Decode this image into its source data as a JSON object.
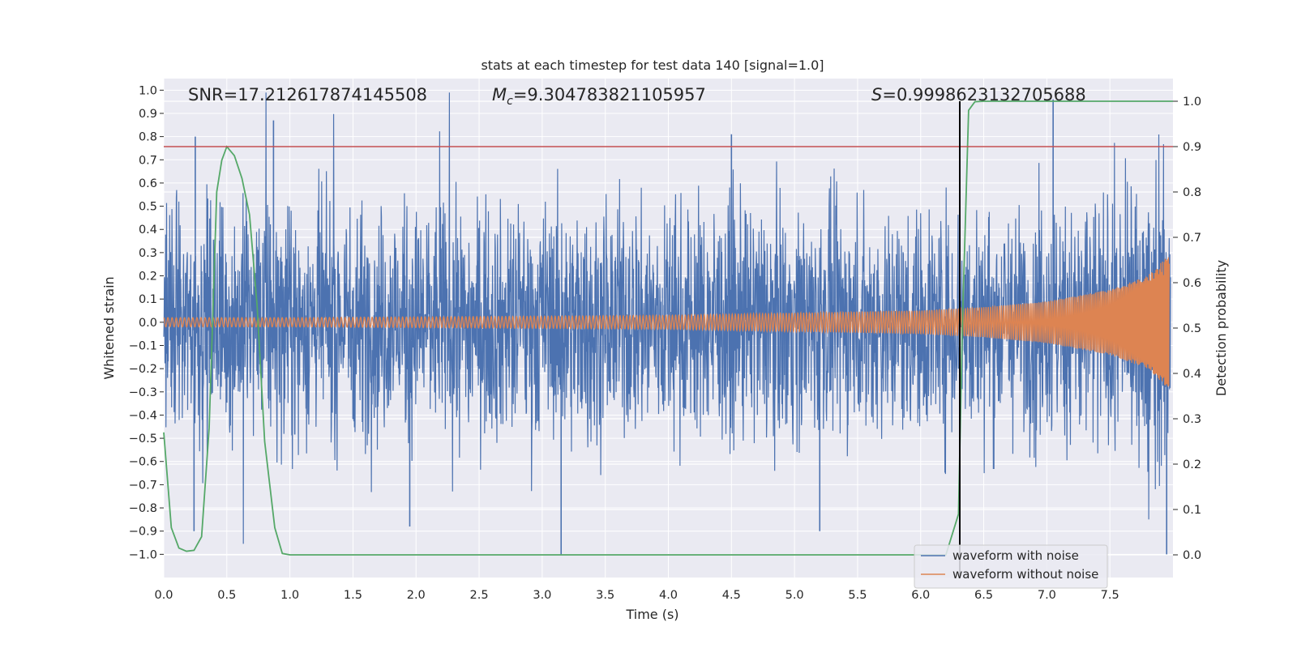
{
  "chart_data": {
    "type": "line",
    "title": "stats at each timestep for test data 140 [signal=1.0]",
    "xlabel": "Time (s)",
    "ylabel": "Whitened strain",
    "y2label": "Detection probability",
    "xlim": [
      0.0,
      8.0
    ],
    "ylim": [
      -1.1,
      1.05
    ],
    "y2lim": [
      -0.05,
      1.05
    ],
    "xticks": [
      "0.0",
      "0.5",
      "1.0",
      "1.5",
      "2.0",
      "2.5",
      "3.0",
      "3.5",
      "4.0",
      "4.5",
      "5.0",
      "5.5",
      "6.0",
      "6.5",
      "7.0",
      "7.5"
    ],
    "yticks": [
      "1.0",
      "0.9",
      "0.8",
      "0.7",
      "0.6",
      "0.5",
      "0.4",
      "0.3",
      "0.2",
      "0.1",
      "0.0",
      "−0.1",
      "−0.2",
      "−0.3",
      "−0.4",
      "−0.5",
      "−0.6",
      "−0.7",
      "−0.8",
      "−0.9",
      "−1.0"
    ],
    "y2ticks": [
      "1.0",
      "0.9",
      "0.8",
      "0.7",
      "0.6",
      "0.5",
      "0.4",
      "0.3",
      "0.2",
      "0.1",
      "0.0"
    ],
    "annotations": {
      "snr": "SNR=17.212617874145508",
      "mc_symbol": "M",
      "mc_sub": "c",
      "mc_value": "=9.304783821105957",
      "s_symbol": "S",
      "s_value": "=0.9998623132705688"
    },
    "threshold": {
      "axis": "y2",
      "value": 0.9,
      "color": "#c44e52"
    },
    "detection_time": {
      "value": 6.31,
      "color": "#000000"
    },
    "legend": {
      "location": "lower-right",
      "entries": [
        {
          "label": "waveform with noise",
          "color": "#4c72b0"
        },
        {
          "label": "waveform without noise",
          "color": "#dd8452"
        }
      ]
    },
    "series": [
      {
        "name": "waveform with noise",
        "axis": "y",
        "color": "#4c72b0",
        "description": "noisy whitened strain sampled across 0-8 s, typical band about -0.45 to 0.45 with spikes reaching about ±1.0",
        "notable_peaks": [
          {
            "t": 0.25,
            "v": 0.8
          },
          {
            "t": 0.87,
            "v": 0.87
          },
          {
            "t": 4.5,
            "v": 0.81
          },
          {
            "t": 7.05,
            "v": 0.96
          },
          {
            "t": 3.15,
            "v": -1.0
          },
          {
            "t": 7.95,
            "v": -1.0
          },
          {
            "t": 0.24,
            "v": -0.9
          },
          {
            "t": 5.2,
            "v": -0.9
          },
          {
            "t": 1.95,
            "v": -0.88
          }
        ]
      },
      {
        "name": "waveform without noise",
        "axis": "y",
        "color": "#dd8452",
        "description": "chirp signal: amplitude grows from about 0.02 at t=0 to about 0.28 near t=7.9 with rising frequency",
        "envelope": [
          [
            0.0,
            0.02
          ],
          [
            1.0,
            0.02
          ],
          [
            2.0,
            0.023
          ],
          [
            3.0,
            0.026
          ],
          [
            4.0,
            0.03
          ],
          [
            5.0,
            0.04
          ],
          [
            6.0,
            0.05
          ],
          [
            6.5,
            0.065
          ],
          [
            7.0,
            0.09
          ],
          [
            7.5,
            0.14
          ],
          [
            7.8,
            0.2
          ],
          [
            7.95,
            0.28
          ]
        ]
      },
      {
        "name": "detection probability",
        "axis": "y2",
        "color": "#55a868",
        "x": [
          0.0,
          0.06,
          0.12,
          0.18,
          0.24,
          0.3,
          0.36,
          0.42,
          0.46,
          0.5,
          0.56,
          0.62,
          0.68,
          0.74,
          0.8,
          0.88,
          0.94,
          1.0,
          1.5,
          2.0,
          3.0,
          4.0,
          5.0,
          6.0,
          6.2,
          6.3,
          6.33,
          6.38,
          6.43,
          6.5,
          7.0,
          7.5,
          8.0
        ],
        "values": [
          0.27,
          0.06,
          0.015,
          0.008,
          0.01,
          0.04,
          0.28,
          0.8,
          0.87,
          0.9,
          0.88,
          0.83,
          0.75,
          0.55,
          0.25,
          0.06,
          0.003,
          0.0,
          0.0,
          0.0,
          0.0,
          0.0,
          0.0,
          0.0,
          0.0,
          0.09,
          0.5,
          0.98,
          0.999,
          1.0,
          1.0,
          1.0,
          1.0
        ]
      }
    ]
  }
}
